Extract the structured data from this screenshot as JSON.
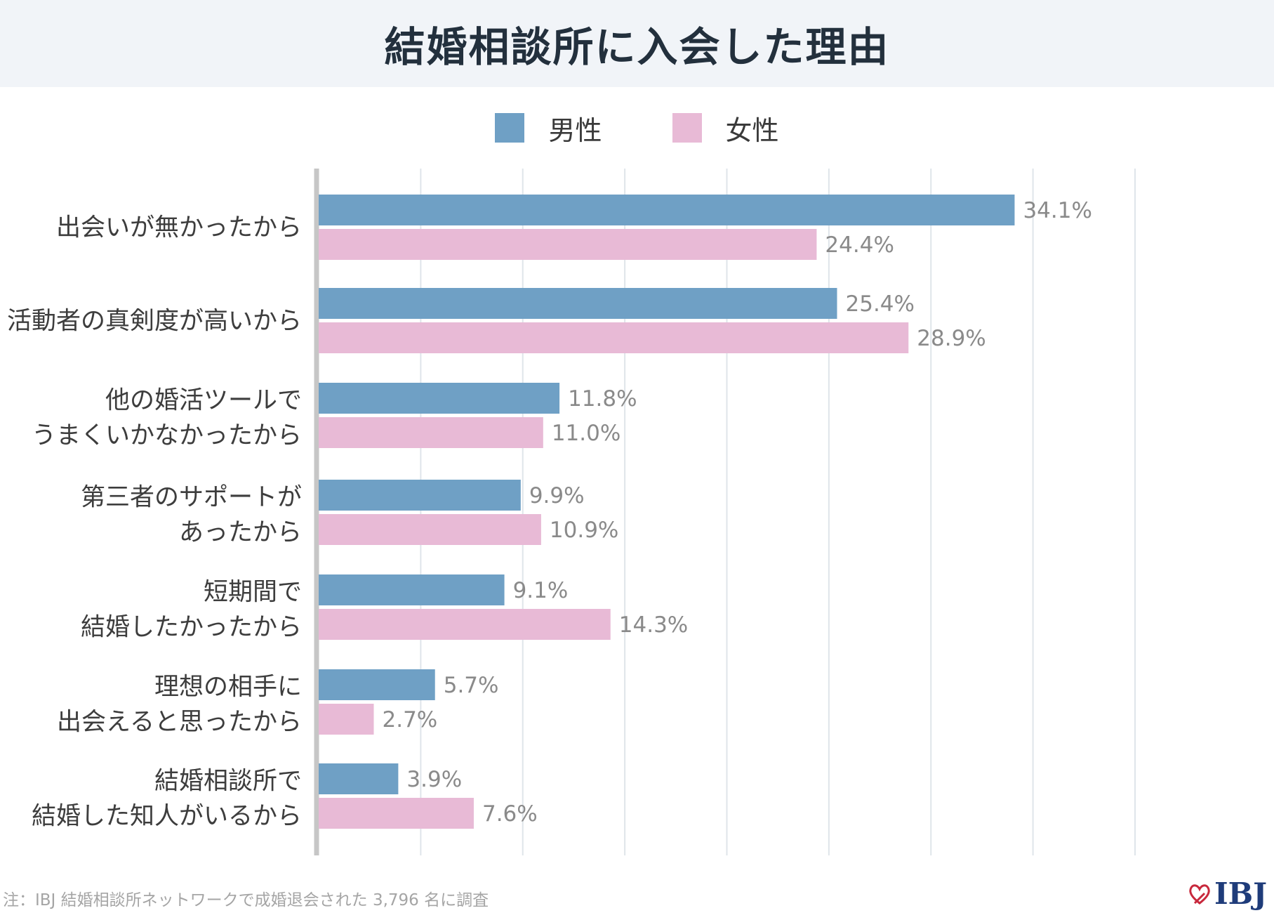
{
  "title": "結婚相談所に入会した理由",
  "legend": [
    {
      "label": "男性",
      "color": "#6fa0c5"
    },
    {
      "label": "女性",
      "color": "#e8bad6"
    }
  ],
  "chart_data": {
    "type": "bar",
    "orientation": "horizontal",
    "categories": [
      [
        "出会いが無かったから"
      ],
      [
        "活動者の真剣度が高いから"
      ],
      [
        "他の婚活ツールで",
        "うまくいかなかったから"
      ],
      [
        "第三者のサポートが",
        "あったから"
      ],
      [
        "短期間で",
        "結婚したかったから"
      ],
      [
        "理想の相手に",
        "出会えると思ったから"
      ],
      [
        "結婚相談所で",
        "結婚した知人がいるから"
      ]
    ],
    "series": [
      {
        "name": "男性",
        "color": "#6fa0c5",
        "values": [
          34.1,
          25.4,
          11.8,
          9.9,
          9.1,
          5.7,
          3.9
        ],
        "labels": [
          "34.1%",
          "25.4%",
          "11.8%",
          "9.9%",
          "9.1%",
          "5.7%",
          "3.9%"
        ]
      },
      {
        "name": "女性",
        "color": "#e8bad6",
        "values": [
          24.4,
          28.9,
          11.0,
          10.9,
          14.3,
          2.7,
          7.6
        ],
        "labels": [
          "24.4%",
          "28.9%",
          "11.0%",
          "10.9%",
          "14.3%",
          "2.7%",
          "7.6%"
        ]
      }
    ],
    "xlim": [
      0,
      40
    ],
    "grid": true,
    "legend_position": "top-center"
  },
  "footnote": "注：IBJ 結婚相談所ネットワークで成婚退会された 3,796 名に調査",
  "logo": {
    "text": "IBJ",
    "icon": "heart-icon",
    "color": "#c8283c"
  }
}
